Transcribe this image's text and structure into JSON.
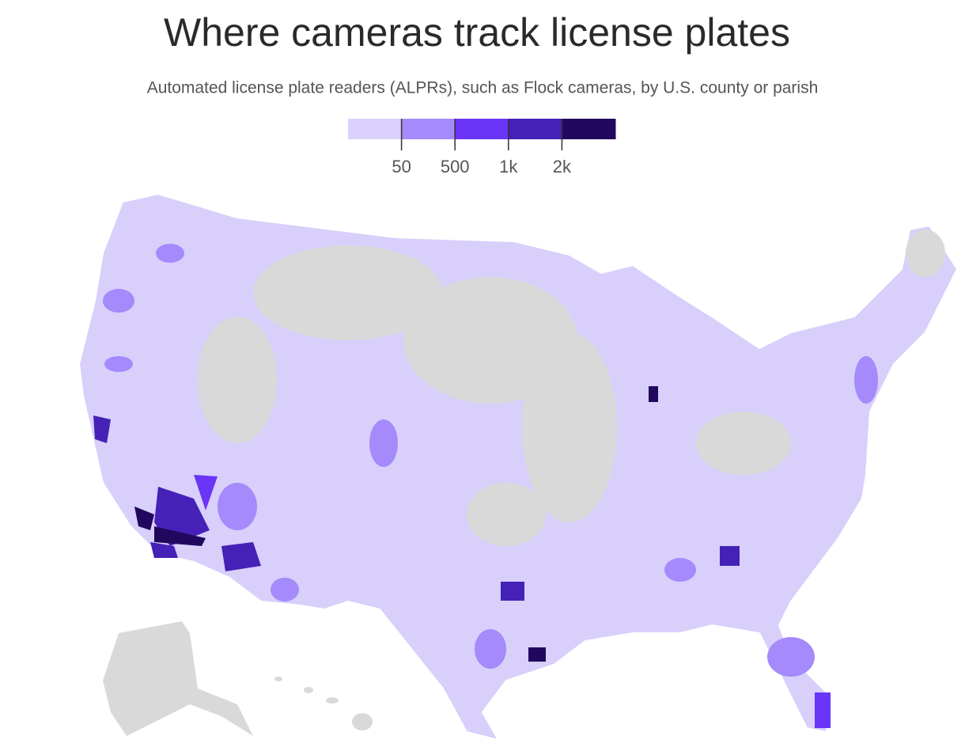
{
  "header": {
    "title": "Where cameras track license plates",
    "subtitle": "Automated license plate readers (ALPRs), such as Flock cameras, by U.S. county or parish"
  },
  "legend": {
    "colors": [
      "#dad2fc",
      "#a48afa",
      "#6a35f7",
      "#4521b8",
      "#22075e"
    ],
    "ticks": [
      50,
      500,
      {
        "value": 1000,
        "label": "1k"
      },
      {
        "value": 2000,
        "label": "2k"
      }
    ]
  }
}
